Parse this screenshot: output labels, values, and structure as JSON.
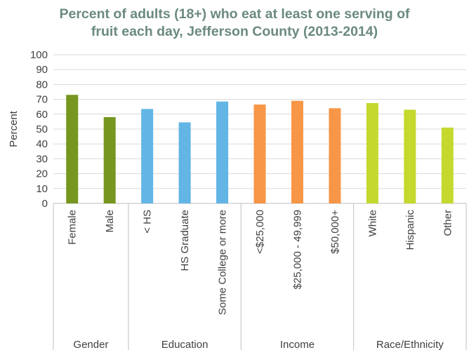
{
  "chart_data": {
    "type": "bar",
    "title_lines": [
      "Percent of adults (18+) who eat at least one serving of",
      "fruit each day, Jefferson County (2013-2014)"
    ],
    "ylabel": "Percent",
    "ylim": [
      0,
      100
    ],
    "yticks": [
      "0",
      "10",
      "20",
      "30",
      "40",
      "50",
      "60",
      "70",
      "80",
      "90",
      "100"
    ],
    "grid": true,
    "legend": "none",
    "groups": [
      {
        "name": "Gender",
        "color": "#76961f",
        "categories": [
          "Female",
          "Male"
        ],
        "values": [
          73,
          58
        ]
      },
      {
        "name": "Education",
        "color": "#62b5e5",
        "categories": [
          "< HS",
          "HS Graduate",
          "Some College or more"
        ],
        "values": [
          63.5,
          54.5,
          68.5
        ]
      },
      {
        "name": "Income",
        "color": "#f79646",
        "categories": [
          "<$25,000",
          "$25,000 - 49,999",
          "$50,000+"
        ],
        "values": [
          66.5,
          69,
          64
        ]
      },
      {
        "name": "Race/Ethnicity",
        "color": "#c4d82e",
        "categories": [
          "White",
          "Hispanic",
          "Other"
        ],
        "values": [
          67.5,
          63,
          51
        ]
      }
    ]
  }
}
